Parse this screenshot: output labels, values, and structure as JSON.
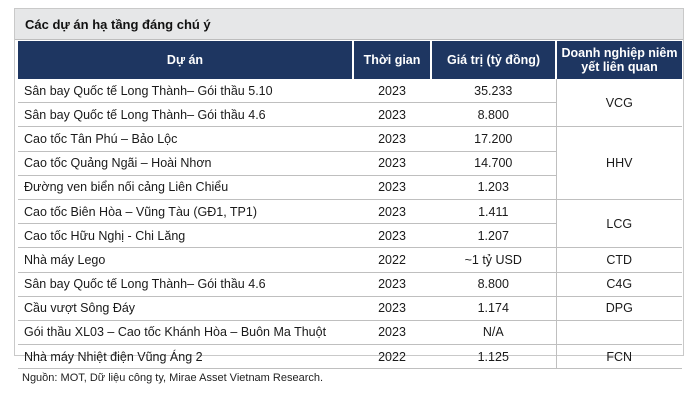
{
  "title": "Các dự án hạ tầng đáng chú ý",
  "headers": {
    "project": "Dự án",
    "time": "Thời gian",
    "value": "Giá trị (tỷ đồng)",
    "company": "Doanh nghiệp niêm yết liên quan"
  },
  "rows": [
    {
      "project": "Sân bay Quốc tế Long Thành– Gói thầu 5.10",
      "time": "2023",
      "value": "35.233"
    },
    {
      "project": "Sân bay Quốc tế Long Thành– Gói thầu 4.6",
      "time": "2023",
      "value": "8.800"
    },
    {
      "project": "Cao tốc Tân Phú – Bảo Lộc",
      "time": "2023",
      "value": "17.200"
    },
    {
      "project": "Cao tốc Quảng Ngãi – Hoài Nhơn",
      "time": "2023",
      "value": "14.700"
    },
    {
      "project": "Đường ven biển nối cảng Liên Chiểu",
      "time": "2023",
      "value": "1.203"
    },
    {
      "project": "Cao tốc Biên Hòa – Vũng Tàu (GĐ1, TP1)",
      "time": "2023",
      "value": "1.411"
    },
    {
      "project": "Cao tốc Hữu Nghị - Chi Lăng",
      "time": "2023",
      "value": "1.207"
    },
    {
      "project": "Nhà máy Lego",
      "time": "2022",
      "value": "~1 tỷ USD"
    },
    {
      "project": "Sân bay Quốc tế Long Thành– Gói thầu 4.6",
      "time": "2023",
      "value": "8.800"
    },
    {
      "project": "Cầu vượt Sông Đáy",
      "time": "2023",
      "value": "1.174"
    },
    {
      "project": "Gói thầu XL03 – Cao tốc Khánh Hòa – Buôn Ma Thuột",
      "time": "2023",
      "value": "N/A"
    },
    {
      "project": "Nhà máy Nhiệt điện Vũng Áng 2",
      "time": "2022",
      "value": "1.125"
    }
  ],
  "companies": [
    {
      "label": "VCG",
      "span": 2
    },
    {
      "label": "HHV",
      "span": 3
    },
    {
      "label": "LCG",
      "span": 2
    },
    {
      "label": "CTD",
      "span": 1
    },
    {
      "label": "C4G",
      "span": 1
    },
    {
      "label": "DPG",
      "span": 1
    },
    {
      "label": "",
      "span": 1
    },
    {
      "label": "FCN",
      "span": 1
    }
  ],
  "footnote": "Nguồn: MOT, Dữ liệu công ty, Mirae Asset Vietnam Research."
}
